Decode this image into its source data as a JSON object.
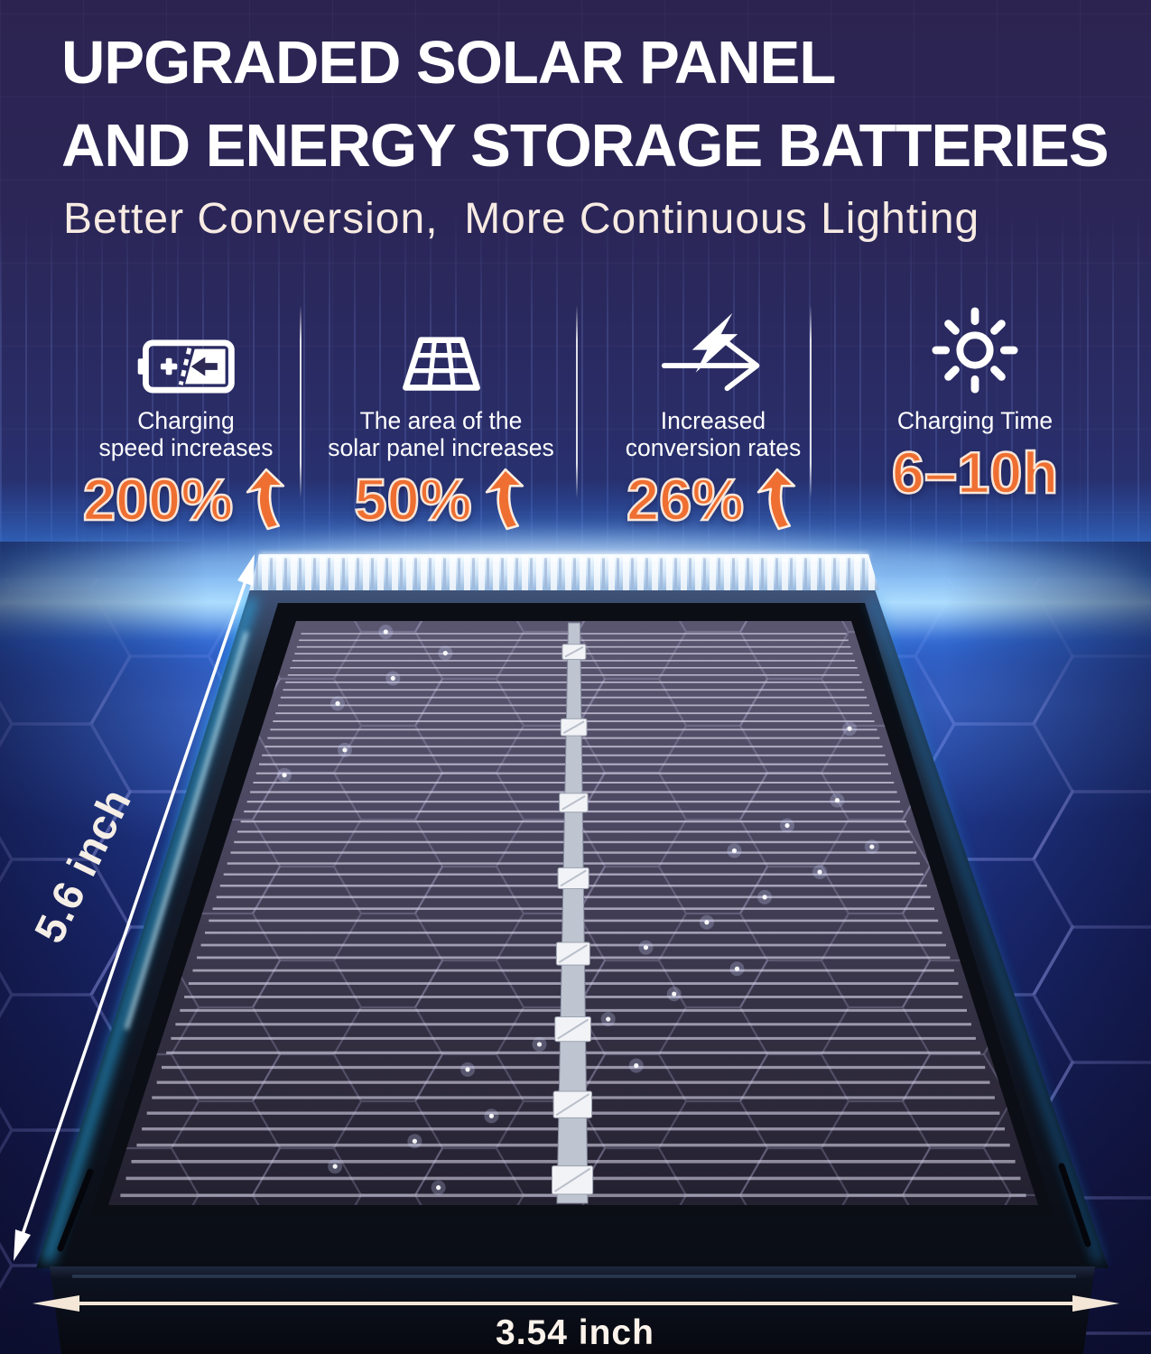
{
  "header": {
    "title_line1": "UPGRADED SOLAR PANEL",
    "title_line2": "AND ENERGY STORAGE BATTERIES",
    "subtitle": "Better Conversion,  More Continuous Lighting"
  },
  "stats": [
    {
      "icon": "battery-charging-icon",
      "label": "Charging\nspeed increases",
      "value": "200%",
      "has_up_arrow": true
    },
    {
      "icon": "solar-panel-icon",
      "label": "The area of the\nsolar panel increases",
      "value": "50%",
      "has_up_arrow": true
    },
    {
      "icon": "lightning-conversion-icon",
      "label": "Increased\nconversion rates",
      "value": "26%",
      "has_up_arrow": true
    },
    {
      "icon": "sun-icon",
      "label": "Charging Time",
      "value": "6–10h",
      "has_up_arrow": false
    }
  ],
  "panel": {
    "height_label": "5.6 inch",
    "width_label": "3.54 inch"
  },
  "colors": {
    "accent_orange": "#ee6f31",
    "value_outline_cream": "#ffeee0",
    "title_white": "#ffffff",
    "subtitle_cream": "#f7ebe3",
    "glow_blue": "#7fd2ff",
    "background_top_purple": "#2c2350",
    "background_floor_blue": "#1a2a74",
    "dimension_text_cream": "#f5eee6"
  }
}
